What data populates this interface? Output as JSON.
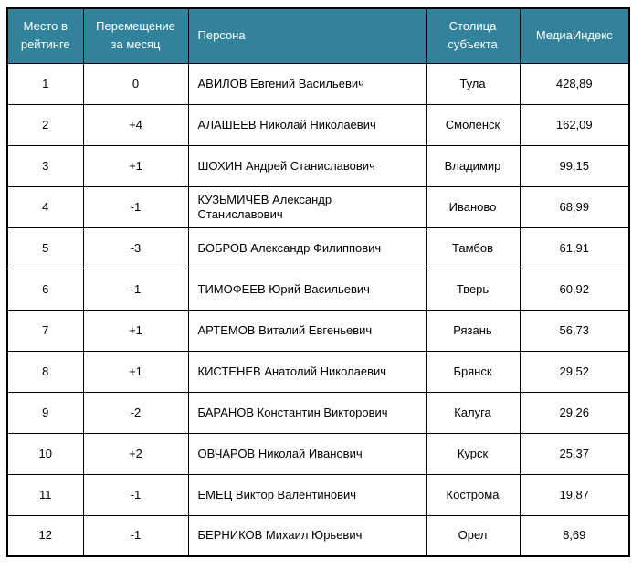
{
  "colors": {
    "header_bg": "#33829C",
    "header_text": "#FFFFFF",
    "cell_text": "#000000",
    "border": "#000000"
  },
  "table": {
    "columns": [
      "Место в рейтинге",
      "Перемещение за месяц",
      "Персона",
      "Столица субъекта",
      "МедиаИндекс"
    ],
    "rows": [
      {
        "rank": "1",
        "change": "0",
        "person": "АВИЛОВ Евгений Васильевич",
        "capital": "Тула",
        "media_index": "428,89"
      },
      {
        "rank": "2",
        "change": "+4",
        "person": "АЛАШЕЕВ Николай Николаевич",
        "capital": "Смоленск",
        "media_index": "162,09"
      },
      {
        "rank": "3",
        "change": "+1",
        "person": "ШОХИН Андрей Станиславович",
        "capital": "Владимир",
        "media_index": "99,15"
      },
      {
        "rank": "4",
        "change": "-1",
        "person": "КУЗЬМИЧЕВ Александр Станиславович",
        "capital": "Иваново",
        "media_index": "68,99"
      },
      {
        "rank": "5",
        "change": "-3",
        "person": "БОБРОВ Александр Филиппович",
        "capital": "Тамбов",
        "media_index": "61,91"
      },
      {
        "rank": "6",
        "change": "-1",
        "person": "ТИМОФЕЕВ Юрий Васильевич",
        "capital": "Тверь",
        "media_index": "60,92"
      },
      {
        "rank": "7",
        "change": "+1",
        "person": "АРТЕМОВ Виталий Евгеньевич",
        "capital": "Рязань",
        "media_index": "56,73"
      },
      {
        "rank": "8",
        "change": "+1",
        "person": "КИСТЕНЕВ Анатолий Николаевич",
        "capital": "Брянск",
        "media_index": "29,52"
      },
      {
        "rank": "9",
        "change": "-2",
        "person": "БАРАНОВ Константин Викторович",
        "capital": "Калуга",
        "media_index": "29,26"
      },
      {
        "rank": "10",
        "change": "+2",
        "person": "ОВЧАРОВ Николай Иванович",
        "capital": "Курск",
        "media_index": "25,37"
      },
      {
        "rank": "11",
        "change": "-1",
        "person": "ЕМЕЦ Виктор Валентинович",
        "capital": "Кострома",
        "media_index": "19,87"
      },
      {
        "rank": "12",
        "change": "-1",
        "person": "БЕРНИКОВ Михаил Юрьевич",
        "capital": "Орел",
        "media_index": "8,69"
      }
    ]
  },
  "chart_data": {
    "type": "table",
    "title": "",
    "columns": [
      "Место в рейтинге",
      "Перемещение за месяц",
      "Персона",
      "Столица субъекта",
      "МедиаИндекс"
    ],
    "rows": [
      [
        1,
        "0",
        "АВИЛОВ Евгений Васильевич",
        "Тула",
        428.89
      ],
      [
        2,
        "+4",
        "АЛАШЕЕВ Николай Николаевич",
        "Смоленск",
        162.09
      ],
      [
        3,
        "+1",
        "ШОХИН Андрей Станиславович",
        "Владимир",
        99.15
      ],
      [
        4,
        "-1",
        "КУЗЬМИЧЕВ Александр Станиславович",
        "Иваново",
        68.99
      ],
      [
        5,
        "-3",
        "БОБРОВ Александр Филиппович",
        "Тамбов",
        61.91
      ],
      [
        6,
        "-1",
        "ТИМОФЕЕВ Юрий Васильевич",
        "Тверь",
        60.92
      ],
      [
        7,
        "+1",
        "АРТЕМОВ Виталий Евгеньевич",
        "Рязань",
        56.73
      ],
      [
        8,
        "+1",
        "КИСТЕНЕВ Анатолий Николаевич",
        "Брянск",
        29.52
      ],
      [
        9,
        "-2",
        "БАРАНОВ Константин Викторович",
        "Калуга",
        29.26
      ],
      [
        10,
        "+2",
        "ОВЧАРОВ Николай Иванович",
        "Курск",
        25.37
      ],
      [
        11,
        "-1",
        "ЕМЕЦ Виктор Валентинович",
        "Кострома",
        19.87
      ],
      [
        12,
        "-1",
        "БЕРНИКОВ Михаил Юрьевич",
        "Орел",
        8.69
      ]
    ]
  }
}
